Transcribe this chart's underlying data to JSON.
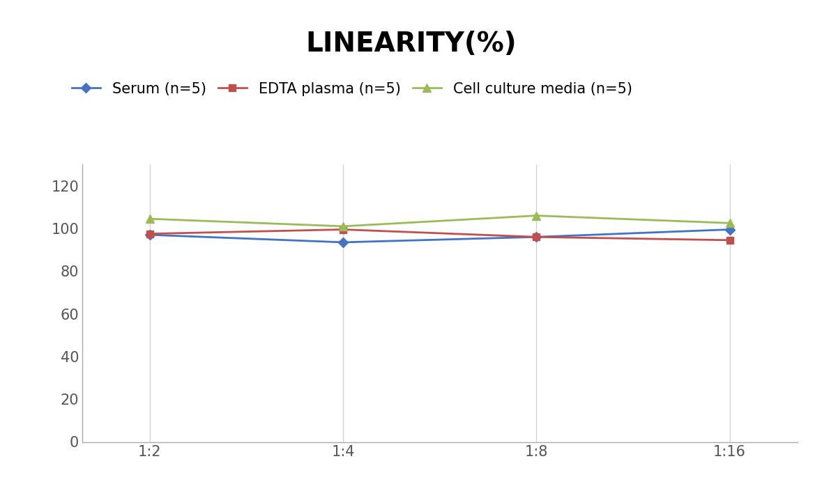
{
  "title": "LINEARITY(%)",
  "title_fontsize": 28,
  "title_fontweight": "bold",
  "x_labels": [
    "1:2",
    "1:4",
    "1:8",
    "1:16"
  ],
  "x_positions": [
    0,
    1,
    2,
    3
  ],
  "series": [
    {
      "label": "Serum (n=5)",
      "values": [
        97.0,
        93.5,
        96.0,
        99.5
      ],
      "color": "#4472C4",
      "marker": "D",
      "markersize": 7
    },
    {
      "label": "EDTA plasma (n=5)",
      "values": [
        97.5,
        99.5,
        96.0,
        94.5
      ],
      "color": "#C0504D",
      "marker": "s",
      "markersize": 7
    },
    {
      "label": "Cell culture media (n=5)",
      "values": [
        104.5,
        101.0,
        106.0,
        102.5
      ],
      "color": "#9BBB59",
      "marker": "^",
      "markersize": 8
    }
  ],
  "ylim": [
    0,
    130
  ],
  "yticks": [
    0,
    20,
    40,
    60,
    80,
    100,
    120
  ],
  "background_color": "#ffffff",
  "grid_color": "#d3d3d3",
  "legend_fontsize": 15,
  "tick_fontsize": 15,
  "spine_color": "#aaaaaa"
}
